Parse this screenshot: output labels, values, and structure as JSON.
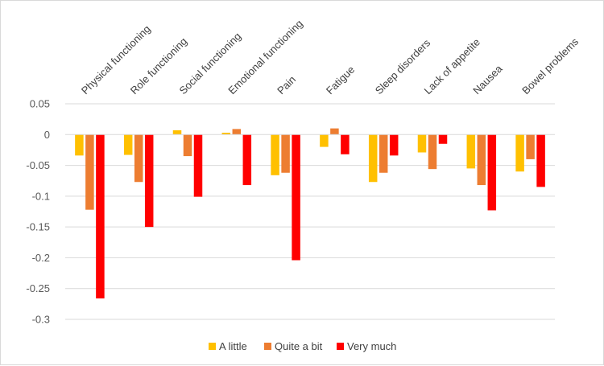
{
  "chart_data": {
    "type": "bar",
    "title": "",
    "xlabel": "",
    "ylabel": "",
    "ylim": [
      -0.3,
      0.05
    ],
    "yticks": [
      0.05,
      0,
      -0.05,
      -0.1,
      -0.15,
      -0.2,
      -0.25,
      -0.3
    ],
    "ytick_labels": [
      "0.05",
      "0",
      "-0.05",
      "-0.1",
      "-0.15",
      "-0.2",
      "-0.25",
      "-0.3"
    ],
    "grid": true,
    "legend_position": "bottom",
    "categories": [
      "Physical functioning",
      "Role functioning",
      "Social functioning",
      "Emotional functioning",
      "Pain",
      "Fatigue",
      "Sleep disorders",
      "Lack of appetite",
      "Nausea",
      "Bowel problems"
    ],
    "series": [
      {
        "name": "A little",
        "color": "#FFC000",
        "values": [
          -0.034,
          -0.033,
          0.007,
          0.003,
          -0.066,
          -0.02,
          -0.077,
          -0.029,
          -0.055,
          -0.06
        ]
      },
      {
        "name": "Quite a bit",
        "color": "#ED7D31",
        "values": [
          -0.122,
          -0.077,
          -0.035,
          0.009,
          -0.062,
          0.01,
          -0.062,
          -0.056,
          -0.082,
          -0.04
        ]
      },
      {
        "name": "Very much",
        "color": "#FF0000",
        "values": [
          -0.266,
          -0.15,
          -0.101,
          -0.082,
          -0.204,
          -0.032,
          -0.034,
          -0.015,
          -0.123,
          -0.085
        ]
      }
    ]
  }
}
